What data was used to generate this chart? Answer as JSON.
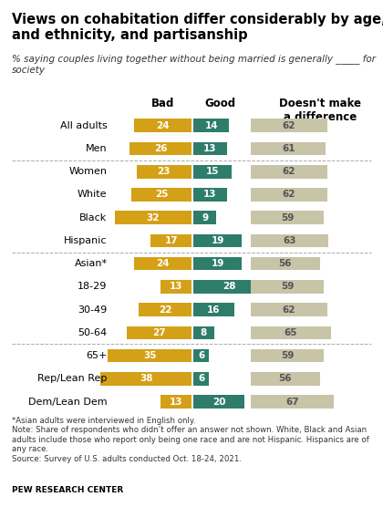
{
  "title": "Views on cohabitation differ considerably by age, race\nand ethnicity, and partisanship",
  "subtitle": "% saying couples living together without being married is generally _____ for\nsociety",
  "categories": [
    "All adults",
    "Men",
    "Women",
    "White",
    "Black",
    "Hispanic",
    "Asian*",
    "18-29",
    "30-49",
    "50-64",
    "65+",
    "Rep/Lean Rep",
    "Dem/Lean Dem"
  ],
  "bad": [
    24,
    26,
    23,
    25,
    32,
    17,
    24,
    13,
    22,
    27,
    35,
    38,
    13
  ],
  "good": [
    14,
    13,
    15,
    13,
    9,
    19,
    19,
    28,
    16,
    8,
    6,
    6,
    20
  ],
  "nodiff": [
    62,
    61,
    62,
    62,
    59,
    63,
    56,
    59,
    62,
    65,
    59,
    56,
    67
  ],
  "bad_color": "#D4A017",
  "good_color": "#2E7D6B",
  "nodiff_color": "#C8C4A8",
  "separator_rows": [
    2,
    6,
    10
  ],
  "footnote": "*Asian adults were interviewed in English only.\nNote: Share of respondents who didn’t offer an answer not shown. White, Black and Asian\nadults include those who report only being one race and are not Hispanic. Hispanics are of\nany race.\nSource: Survey of U.S. adults conducted Oct. 18-24, 2021.",
  "source_label": "PEW RESEARCH CENTER",
  "bg_color": "#FFFFFF"
}
